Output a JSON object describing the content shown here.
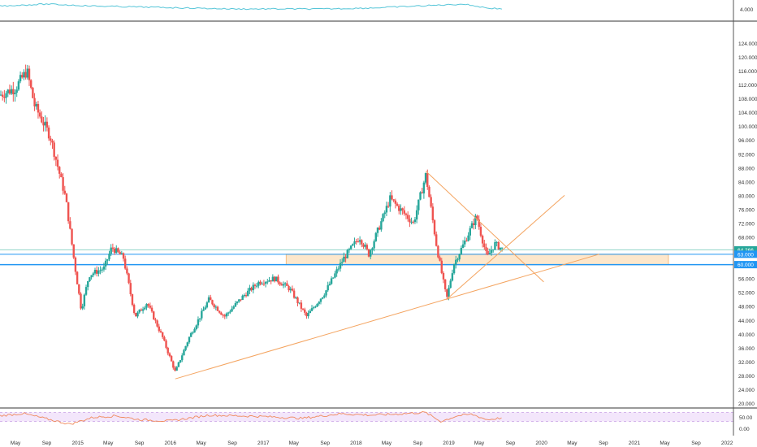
{
  "colors": {
    "up": "#26a69a",
    "down": "#ef5350",
    "indicator_line": "#56c5d8",
    "rsi_line": "#f08a5d",
    "rsi_band": "#f3e6fb",
    "rsi_band_border": "#c9a4e6",
    "trendline": "#f4a460",
    "support_zone_fill": "#fde3c3",
    "support_zone_border": "#f4b26a",
    "level_line": "#2196f3",
    "price_tag": "#2196f3",
    "current_price_tag": "#26a69a",
    "hline_green": "#8fd3c7",
    "grid_divider": "#333333",
    "axis_text": "#333333"
  },
  "chart_data": [
    {
      "type": "line",
      "panel": "top indicator",
      "y_ticks": [
        "4.000"
      ],
      "series": [
        {
          "x": [
            "2014-03",
            "2014-09",
            "2015-03",
            "2015-09",
            "2016-03",
            "2016-09",
            "2017-03",
            "2017-09",
            "2018-03",
            "2018-09",
            "2019-03",
            "2019-06",
            "2019-08"
          ],
          "values": [
            4.3,
            4.5,
            4.3,
            4.2,
            4.1,
            4.0,
            4.0,
            4.0,
            4.1,
            4.3,
            4.5,
            4.1,
            4.0
          ]
        }
      ]
    },
    {
      "type": "candlestick",
      "panel": "price",
      "y_ticks": [
        "124.000",
        "120.000",
        "116.000",
        "112.000",
        "108.000",
        "104.000",
        "100.000",
        "96.000",
        "92.000",
        "88.000",
        "84.000",
        "80.000",
        "76.000",
        "72.000",
        "68.000",
        "64.000",
        "60.000",
        "56.000",
        "52.000",
        "48.000",
        "44.000",
        "40.000",
        "36.000",
        "32.000",
        "28.000",
        "24.000",
        "20.000"
      ],
      "x_ticks": [
        "May",
        "Sep",
        "2015",
        "May",
        "Sep",
        "2016",
        "May",
        "Sep",
        "2017",
        "May",
        "Sep",
        "2018",
        "May",
        "Sep",
        "2019",
        "May",
        "Sep",
        "2020",
        "May",
        "Sep",
        "2021",
        "May",
        "Sep",
        "2022"
      ],
      "ylim": [
        18,
        126
      ],
      "price_tags": [
        {
          "label": "64.266",
          "value": 64.266,
          "kind": "current"
        },
        {
          "label": "63.000",
          "value": 63.0,
          "kind": "level"
        },
        {
          "label": "60.000",
          "value": 60.0,
          "kind": "level"
        }
      ],
      "close_path": [
        {
          "t": "2014-03-01",
          "v": 109
        },
        {
          "t": "2014-05-01",
          "v": 111
        },
        {
          "t": "2014-06-15",
          "v": 116
        },
        {
          "t": "2014-07-15",
          "v": 106
        },
        {
          "t": "2014-09-15",
          "v": 97
        },
        {
          "t": "2014-11-15",
          "v": 79
        },
        {
          "t": "2014-12-20",
          "v": 60
        },
        {
          "t": "2015-01-15",
          "v": 47
        },
        {
          "t": "2015-02-15",
          "v": 57
        },
        {
          "t": "2015-04-15",
          "v": 59
        },
        {
          "t": "2015-05-15",
          "v": 65
        },
        {
          "t": "2015-06-30",
          "v": 62
        },
        {
          "t": "2015-08-15",
          "v": 45
        },
        {
          "t": "2015-10-01",
          "v": 49
        },
        {
          "t": "2015-12-01",
          "v": 39
        },
        {
          "t": "2016-01-20",
          "v": 29
        },
        {
          "t": "2016-03-15",
          "v": 39
        },
        {
          "t": "2016-06-01",
          "v": 50
        },
        {
          "t": "2016-08-01",
          "v": 45
        },
        {
          "t": "2016-10-15",
          "v": 51
        },
        {
          "t": "2016-12-15",
          "v": 55
        },
        {
          "t": "2017-02-15",
          "v": 56
        },
        {
          "t": "2017-04-15",
          "v": 53
        },
        {
          "t": "2017-06-20",
          "v": 45
        },
        {
          "t": "2017-09-01",
          "v": 52
        },
        {
          "t": "2017-11-15",
          "v": 62
        },
        {
          "t": "2018-01-15",
          "v": 68
        },
        {
          "t": "2018-02-20",
          "v": 63
        },
        {
          "t": "2018-05-15",
          "v": 79
        },
        {
          "t": "2018-08-15",
          "v": 72
        },
        {
          "t": "2018-10-03",
          "v": 86
        },
        {
          "t": "2018-11-15",
          "v": 65
        },
        {
          "t": "2018-12-24",
          "v": 50
        },
        {
          "t": "2019-01-20",
          "v": 60
        },
        {
          "t": "2019-03-01",
          "v": 66
        },
        {
          "t": "2019-04-20",
          "v": 74
        },
        {
          "t": "2019-06-01",
          "v": 62
        },
        {
          "t": "2019-07-01",
          "v": 66
        },
        {
          "t": "2019-08-05",
          "v": 64.266
        }
      ],
      "support_zone": {
        "from": "2017-04-01",
        "to": "2021-05-15",
        "low": 60.0,
        "high": 63.0
      },
      "trendlines": [
        {
          "from": {
            "t": "2016-01-20",
            "v": 27
          },
          "to": {
            "t": "2020-08-15",
            "v": 63
          }
        },
        {
          "from": {
            "t": "2018-12-24",
            "v": 50
          },
          "to": {
            "t": "2020-04-01",
            "v": 80
          }
        },
        {
          "from": {
            "t": "2018-10-03",
            "v": 87
          },
          "to": {
            "t": "2020-01-10",
            "v": 55
          }
        }
      ]
    },
    {
      "type": "line",
      "panel": "RSI",
      "y_ticks": [
        "50.00",
        "0.00"
      ],
      "band": [
        30,
        70
      ],
      "ylim": [
        -5,
        95
      ],
      "series": [
        {
          "x": [
            "2014-03",
            "2014-06",
            "2014-12",
            "2015-03",
            "2015-06",
            "2015-09",
            "2016-01",
            "2016-06",
            "2017-01",
            "2017-06",
            "2017-11",
            "2018-03",
            "2018-06",
            "2018-10",
            "2018-12",
            "2019-02",
            "2019-04",
            "2019-06",
            "2019-08"
          ],
          "values": [
            55,
            65,
            18,
            48,
            55,
            38,
            32,
            58,
            52,
            44,
            64,
            58,
            62,
            70,
            30,
            54,
            62,
            38,
            46
          ]
        }
      ]
    }
  ]
}
